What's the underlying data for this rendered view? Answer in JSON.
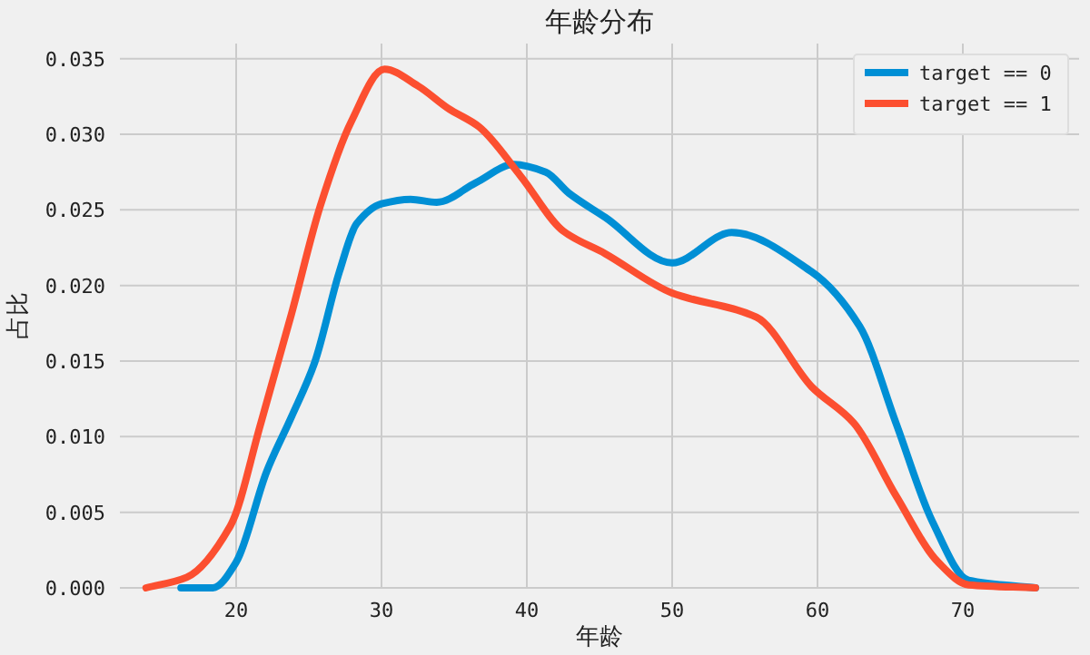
{
  "chart_data": {
    "type": "line",
    "title": "年龄分布",
    "xlabel": "年龄",
    "ylabel": "占比",
    "xlim": [
      12,
      78
    ],
    "xticks": [
      20,
      30,
      40,
      50,
      60,
      70
    ],
    "ylim": [
      0,
      0.036
    ],
    "yticks": [
      {
        "value": 0,
        "label": "0.000"
      },
      {
        "value": 0.005,
        "label": "0.005"
      },
      {
        "value": 0.01,
        "label": "0.010"
      },
      {
        "value": 0.015,
        "label": "0.015"
      },
      {
        "value": 0.02,
        "label": "0.020"
      },
      {
        "value": 0.025,
        "label": "0.025"
      },
      {
        "value": 0.03,
        "label": "0.030"
      },
      {
        "value": 0.035,
        "label": "0.035"
      }
    ],
    "grid": true,
    "legend": "top right",
    "series": [
      {
        "name": "target == 0",
        "color": "#008fd5",
        "x": [
          16.2,
          18.4,
          20,
          22.1,
          23.8,
          25.4,
          27.1,
          28.3,
          30,
          32,
          33.8,
          36.5,
          39.1,
          41.3,
          42.9,
          45.4,
          50,
          54.1,
          59.6,
          62.9,
          65.4,
          67.9,
          70.4,
          75
        ],
        "values": [
          0,
          0,
          0.0017,
          0.0077,
          0.0113,
          0.0149,
          0.0209,
          0.0241,
          0.0254,
          0.0257,
          0.0255,
          0.0268,
          0.028,
          0.0275,
          0.0261,
          0.0245,
          0.0215,
          0.0235,
          0.0209,
          0.0173,
          0.0109,
          0.0044,
          0.0005,
          0
        ]
      },
      {
        "name": "target == 1",
        "color": "#fc4f30",
        "x": [
          13.8,
          16.6,
          19.6,
          21.7,
          23.8,
          25.8,
          27.9,
          30.2,
          32.5,
          34.6,
          36.7,
          39.6,
          42.5,
          45.4,
          50,
          55.8,
          59.6,
          62.5,
          65.4,
          68.3,
          70.4,
          75
        ],
        "values": [
          0,
          0.0007,
          0.0041,
          0.0109,
          0.0181,
          0.0253,
          0.0308,
          0.0343,
          0.0332,
          0.0317,
          0.0305,
          0.0272,
          0.0236,
          0.0221,
          0.0195,
          0.0179,
          0.0133,
          0.0109,
          0.0061,
          0.0017,
          0.0002,
          0
        ]
      }
    ]
  }
}
